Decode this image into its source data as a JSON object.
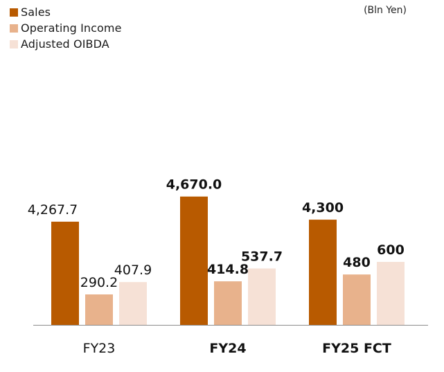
{
  "unit_label": "(Bln Yen)",
  "legend": [
    {
      "label": "Sales",
      "color": "#b85a00"
    },
    {
      "label": "Operating Income",
      "color": "#e8b28c"
    },
    {
      "label": "Adjusted OIBDA",
      "color": "#f6e1d6"
    }
  ],
  "chart_data": {
    "type": "bar",
    "categories": [
      "FY23",
      "FY24",
      "FY25 FCT"
    ],
    "category_bold": [
      false,
      true,
      true
    ],
    "series": [
      {
        "name": "Sales",
        "color": "#b85a00",
        "values": [
          4267.7,
          4670.0,
          4300
        ],
        "labels": [
          "4,267.7",
          "4,670.0",
          "4,300"
        ]
      },
      {
        "name": "Operating Income",
        "color": "#e8b28c",
        "values": [
          290.2,
          414.8,
          480
        ],
        "labels": [
          "290.2",
          "414.8",
          "480"
        ]
      },
      {
        "name": "Adjusted OIBDA",
        "color": "#f6e1d6",
        "values": [
          407.9,
          537.7,
          600
        ],
        "labels": [
          "407.9",
          "537.7",
          "600"
        ]
      }
    ],
    "unit": "(Bln Yen)",
    "xlabel": "",
    "ylabel": "",
    "legend_position": "top-left",
    "grid": false,
    "note": "broken value axis: Sales bars drawn on a compressed scale"
  }
}
